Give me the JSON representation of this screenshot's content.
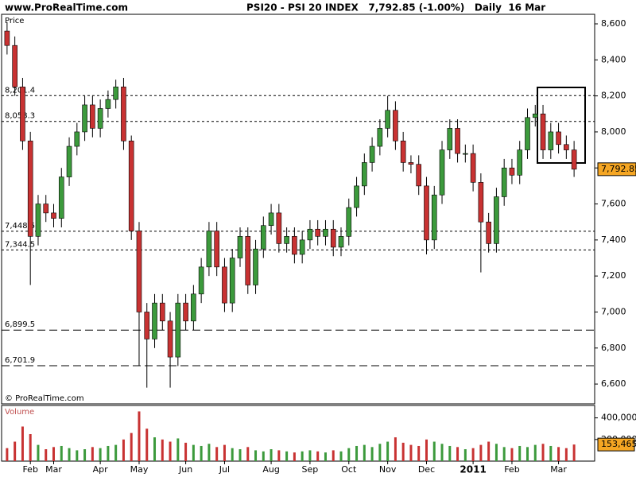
{
  "chart_data": {
    "type": "candlestick",
    "site": "www.ProRealTime.com",
    "title": "PSI20 - PSI 20 INDEX   7,792.85 (-1.00%)   Daily  16 Mar",
    "price_label": "Price",
    "volume_label": "Volume",
    "copyright": "© ProRealTime.com",
    "categories": [
      null,
      null,
      null,
      "Feb",
      null,
      null,
      "Mar",
      null,
      null,
      null,
      null,
      null,
      "Apr",
      null,
      null,
      null,
      null,
      "May",
      null,
      null,
      null,
      null,
      null,
      "Jun",
      null,
      null,
      null,
      null,
      "Jul",
      null,
      null,
      null,
      null,
      null,
      "Aug",
      null,
      null,
      null,
      null,
      "Sep",
      null,
      null,
      null,
      null,
      "Oct",
      null,
      null,
      null,
      null,
      "Nov",
      null,
      null,
      null,
      null,
      "Dec",
      null,
      null,
      null,
      null,
      null,
      "2011",
      null,
      null,
      null,
      null,
      "Feb",
      null,
      null,
      null,
      null,
      null,
      "Mar",
      null,
      null
    ],
    "open": [
      8560,
      8480,
      8250,
      7950,
      7420,
      7600,
      7550,
      7520,
      7750,
      7920,
      8000,
      8150,
      8020,
      8130,
      8180,
      8250,
      7950,
      7450,
      7000,
      6850,
      7050,
      6950,
      6750,
      7050,
      6950,
      7100,
      7250,
      7450,
      7250,
      7050,
      7300,
      7420,
      7150,
      7350,
      7480,
      7550,
      7380,
      7420,
      7320,
      7400,
      7460,
      7420,
      7460,
      7360,
      7420,
      7580,
      7700,
      7830,
      7920,
      8020,
      8120,
      7950,
      7830,
      7820,
      7700,
      7400,
      7650,
      7900,
      8020,
      7880,
      7880,
      7720,
      7500,
      7380,
      7640,
      7800,
      7760,
      7900,
      8080,
      8100,
      7900,
      8000,
      7930,
      7900
    ],
    "high": [
      8610,
      8530,
      8300,
      8000,
      7650,
      7650,
      7600,
      7800,
      7970,
      8050,
      8200,
      8200,
      8180,
      8230,
      8290,
      8300,
      7980,
      7500,
      7050,
      7100,
      7100,
      7000,
      7100,
      7100,
      7150,
      7300,
      7500,
      7500,
      7300,
      7350,
      7470,
      7470,
      7400,
      7530,
      7600,
      7600,
      7470,
      7470,
      7450,
      7510,
      7510,
      7510,
      7510,
      7470,
      7630,
      7750,
      7880,
      7970,
      8070,
      8200,
      8170,
      8000,
      7870,
      7870,
      7750,
      7700,
      7950,
      8070,
      8070,
      7930,
      7930,
      7770,
      7550,
      7690,
      7850,
      7850,
      7950,
      8130,
      8150,
      8150,
      8050,
      8050,
      7980,
      7950
    ],
    "low": [
      8430,
      8200,
      7900,
      7150,
      7370,
      7500,
      7470,
      7470,
      7700,
      7870,
      7950,
      7970,
      7970,
      8080,
      8130,
      7900,
      7400,
      6700,
      6580,
      6800,
      6900,
      6580,
      6700,
      6900,
      6900,
      7050,
      7200,
      7200,
      7000,
      7000,
      7250,
      7100,
      7100,
      7300,
      7430,
      7330,
      7330,
      7270,
      7270,
      7350,
      7370,
      7370,
      7310,
      7310,
      7370,
      7530,
      7650,
      7780,
      7870,
      7970,
      7900,
      7780,
      7770,
      7650,
      7320,
      7350,
      7600,
      7850,
      7830,
      7830,
      7670,
      7220,
      7330,
      7330,
      7590,
      7710,
      7710,
      7850,
      8030,
      7850,
      7850,
      7880,
      7850,
      7750
    ],
    "close": [
      8480,
      8250,
      7950,
      7420,
      7600,
      7550,
      7520,
      7750,
      7920,
      8000,
      8150,
      8020,
      8130,
      8180,
      8250,
      7950,
      7450,
      7000,
      6850,
      7050,
      6950,
      6750,
      7050,
      6950,
      7100,
      7250,
      7450,
      7250,
      7050,
      7300,
      7420,
      7150,
      7350,
      7480,
      7550,
      7380,
      7420,
      7320,
      7400,
      7460,
      7420,
      7460,
      7360,
      7420,
      7580,
      7700,
      7830,
      7920,
      8020,
      8120,
      7950,
      7830,
      7820,
      7700,
      7400,
      7650,
      7900,
      8020,
      7880,
      7880,
      7720,
      7500,
      7380,
      7640,
      7800,
      7760,
      7900,
      8080,
      8100,
      7900,
      8000,
      7930,
      7900,
      7792.85
    ],
    "volume": [
      120000,
      180000,
      320000,
      250000,
      150000,
      110000,
      130000,
      140000,
      120000,
      100000,
      110000,
      130000,
      120000,
      140000,
      150000,
      200000,
      260000,
      460000,
      300000,
      220000,
      200000,
      180000,
      210000,
      170000,
      150000,
      140000,
      160000,
      130000,
      150000,
      120000,
      110000,
      130000,
      100000,
      90000,
      110000,
      100000,
      90000,
      80000,
      90000,
      100000,
      90000,
      80000,
      100000,
      90000,
      120000,
      140000,
      150000,
      130000,
      160000,
      180000,
      220000,
      170000,
      150000,
      140000,
      200000,
      180000,
      160000,
      140000,
      130000,
      110000,
      120000,
      150000,
      180000,
      160000,
      130000,
      120000,
      140000,
      130000,
      150000,
      160000,
      140000,
      130000,
      120000,
      153465
    ],
    "last_close_label": "7,792.85",
    "last_volume_label": "153,465",
    "up_color": "#3c9a3c",
    "down_color": "#c83232",
    "ylim": [
      6490,
      8653
    ],
    "yticks": [
      {
        "value": 6600,
        "label": "6,600"
      },
      {
        "value": 6800,
        "label": "6,800"
      },
      {
        "value": 7000,
        "label": "7,000"
      },
      {
        "value": 7200,
        "label": "7,200"
      },
      {
        "value": 7400,
        "label": "7,400"
      },
      {
        "value": 7600,
        "label": "7,600"
      },
      {
        "value": 7800,
        "label": "7,800"
      },
      {
        "value": 8000,
        "label": "8,000"
      },
      {
        "value": 8200,
        "label": "8,200"
      },
      {
        "value": 8400,
        "label": "8,400"
      },
      {
        "value": 8600,
        "label": "8,600"
      }
    ],
    "volume_ylim": [
      0,
      515000
    ],
    "volume_yticks": [
      {
        "value": 200000,
        "label": "200,000"
      },
      {
        "value": 400000,
        "label": "400,000"
      }
    ],
    "levels": [
      {
        "value": 8201.4,
        "label": "8,201.4",
        "style": "dotted"
      },
      {
        "value": 8058.3,
        "label": "8,058.3",
        "style": "dotted"
      },
      {
        "value": 7448.5,
        "label": "7,448.5",
        "style": "dotted"
      },
      {
        "value": 7344.5,
        "label": "7,344.5",
        "style": "dotted"
      },
      {
        "value": 6899.5,
        "label": "6,899.5",
        "style": "dashed"
      },
      {
        "value": 6701.9,
        "label": "6,701.9",
        "style": "dashed"
      }
    ]
  }
}
